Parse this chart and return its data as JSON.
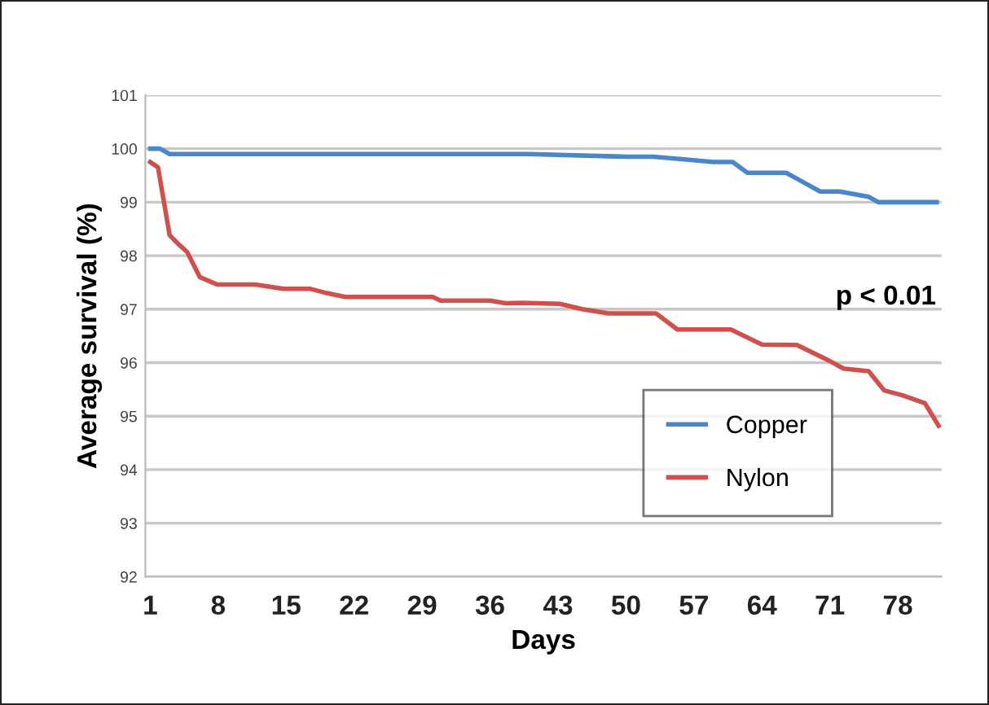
{
  "chart_data": {
    "type": "line",
    "xlabel": "Days",
    "ylabel": "Average survival (%)",
    "series": [
      {
        "name": "Copper",
        "color": "#4a86c8",
        "x": [
          1,
          2,
          3,
          10,
          20,
          30,
          40,
          50,
          52.8,
          56,
          59,
          61,
          62.5,
          65,
          66.5,
          68,
          70,
          72,
          73.5,
          75,
          76,
          78,
          82
        ],
        "values": [
          100,
          100,
          99.9,
          99.9,
          99.9,
          99.9,
          99.9,
          99.85,
          99.85,
          99.8,
          99.75,
          99.75,
          99.55,
          99.55,
          99.55,
          99.4,
          99.2,
          99.2,
          99.15,
          99.1,
          99.0,
          99.0,
          99.0
        ]
      },
      {
        "name": "Nylon",
        "color": "#d0504d",
        "x": [
          1,
          1.8,
          3,
          4,
          4.8,
          6.1,
          7.9,
          11.8,
          14.7,
          17.5,
          19.2,
          21.1,
          30.1,
          30.9,
          36,
          37.6,
          39.3,
          43.2,
          45.5,
          48.2,
          53.1,
          55.3,
          60.8,
          64,
          67.6,
          70.9,
          72.4,
          75,
          76.6,
          78.5,
          80.8,
          82.2
        ],
        "values": [
          99.75,
          99.65,
          98.38,
          98.2,
          98.07,
          97.6,
          97.46,
          97.46,
          97.38,
          97.38,
          97.3,
          97.23,
          97.23,
          97.16,
          97.16,
          97.11,
          97.12,
          97.1,
          97.0,
          96.92,
          96.92,
          96.62,
          96.62,
          96.34,
          96.33,
          96.04,
          95.89,
          95.84,
          95.48,
          95.39,
          95.24,
          94.82
        ]
      }
    ],
    "xlim": [
      0.5,
      82.5
    ],
    "xticks": [
      1,
      8,
      15,
      22,
      29,
      36,
      43,
      50,
      57,
      64,
      71,
      78
    ],
    "ylim": [
      92,
      101
    ],
    "yticks": [
      92,
      93,
      94,
      95,
      96,
      97,
      98,
      99,
      100,
      101
    ],
    "grid": "y",
    "legend": "bottom right",
    "marker": "none",
    "line_style": "solid",
    "annotations": [
      "p < 0.01"
    ]
  }
}
